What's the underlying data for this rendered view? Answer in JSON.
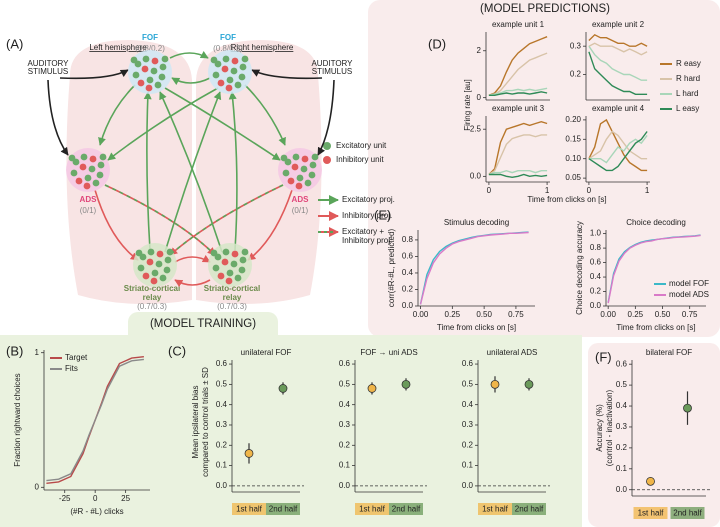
{
  "headers": {
    "predictions": "(MODEL PREDICTIONS)",
    "training": "(MODEL TRAINING)"
  },
  "panel_labels": {
    "a": "(A)",
    "b": "(B)",
    "c": "(C)",
    "d": "(D)",
    "e": "(E)",
    "f": "(F)"
  },
  "diagram": {
    "left_hemisphere": "Left hemisphere",
    "right_hemisphere": "Right hemisphere",
    "auditory": [
      "AUDITORY",
      "STIMULUS"
    ],
    "fof": "FOF",
    "fof_ratio": "(0.8/0.2)",
    "ads": "ADS",
    "ads_ratio": "(0/1)",
    "relay": [
      "Striato-cortical",
      "relay"
    ],
    "relay_ratio": "(0.7/0.3)",
    "legend": {
      "excitatory_unit": "Excitatory unit",
      "inhibitory_unit": "Inhibitory unit",
      "excitatory_proj": "Excitatory proj.",
      "inhibitory_proj": "Inhibitory proj.",
      "combined_proj": [
        "Excitatory +",
        "Inhibitory proj."
      ]
    }
  },
  "panel_d": {
    "ylabel": "Firing rate [au]",
    "xlabel": "Time from clicks on [s]"
  },
  "panel_c": {
    "ylabel": [
      "Mean ipsilateral bias",
      "compared to control trials ± SD"
    ]
  },
  "chart_data": [
    {
      "type": "line",
      "title": "example unit 1",
      "x": [
        0,
        0.1,
        0.2,
        0.3,
        0.4,
        0.5,
        0.6,
        0.7,
        0.8,
        0.9,
        1.0
      ],
      "xlim": [
        -0.05,
        1.05
      ],
      "ylim": [
        -0.1,
        2.8
      ],
      "yticks": [
        0,
        2
      ],
      "series": [
        {
          "name": "R easy",
          "color": "#b8762a",
          "values": [
            0.1,
            0.2,
            0.5,
            1.1,
            1.6,
            1.9,
            2.1,
            2.3,
            2.4,
            2.5,
            2.6
          ]
        },
        {
          "name": "R hard",
          "color": "#d8c3a8",
          "values": [
            0.1,
            0.15,
            0.3,
            0.6,
            0.9,
            1.2,
            1.4,
            1.6,
            1.7,
            1.8,
            1.9
          ]
        },
        {
          "name": "L hard",
          "color": "#a9d6b9",
          "values": [
            0.1,
            0.15,
            0.2,
            0.3,
            0.3,
            0.35,
            0.3,
            0.35,
            0.3,
            0.35,
            0.4
          ]
        },
        {
          "name": "L easy",
          "color": "#2e8a57",
          "values": [
            0.1,
            0.1,
            0.15,
            0.2,
            0.15,
            0.2,
            0.2,
            0.15,
            0.2,
            0.25,
            0.2
          ]
        }
      ]
    },
    {
      "type": "line",
      "title": "example unit 2",
      "x": [
        0,
        0.1,
        0.2,
        0.3,
        0.4,
        0.5,
        0.6,
        0.7,
        0.8,
        0.9,
        1.0
      ],
      "xlim": [
        -0.05,
        1.05
      ],
      "ylim": [
        0.11,
        0.35
      ],
      "yticks": [
        0.2,
        0.3
      ],
      "series": [
        {
          "name": "R easy",
          "color": "#b8762a",
          "values": [
            0.32,
            0.34,
            0.33,
            0.33,
            0.32,
            0.31,
            0.31,
            0.3,
            0.3,
            0.31,
            0.3
          ]
        },
        {
          "name": "R hard",
          "color": "#d8c3a8",
          "values": [
            0.3,
            0.31,
            0.3,
            0.3,
            0.3,
            0.29,
            0.28,
            0.29,
            0.28,
            0.27,
            0.28
          ]
        },
        {
          "name": "L hard",
          "color": "#a9d6b9",
          "values": [
            0.3,
            0.27,
            0.25,
            0.24,
            0.22,
            0.21,
            0.2,
            0.2,
            0.19,
            0.18,
            0.18
          ]
        },
        {
          "name": "L easy",
          "color": "#2e8a57",
          "values": [
            0.28,
            0.22,
            0.2,
            0.18,
            0.16,
            0.15,
            0.14,
            0.14,
            0.13,
            0.13,
            0.13
          ]
        }
      ]
    },
    {
      "type": "line",
      "title": "example unit 3",
      "x": [
        0,
        0.1,
        0.2,
        0.3,
        0.4,
        0.5,
        0.6,
        0.7,
        0.8,
        0.9,
        1.0
      ],
      "xlim": [
        -0.05,
        1.05
      ],
      "xticks": [
        0,
        1
      ],
      "ylim": [
        -0.3,
        3.2
      ],
      "yticks": [
        {
          "value": 0,
          "label": "0.0"
        },
        2.5
      ],
      "series": [
        {
          "name": "R easy",
          "color": "#b8762a",
          "values": [
            0.1,
            0.4,
            1.8,
            2.5,
            2.6,
            2.7,
            2.8,
            2.7,
            2.8,
            2.9,
            2.8
          ]
        },
        {
          "name": "R hard",
          "color": "#d8c3a8",
          "values": [
            0.1,
            0.3,
            1.0,
            1.7,
            2.0,
            2.1,
            2.2,
            2.2,
            2.1,
            2.2,
            2.2
          ]
        },
        {
          "name": "L hard",
          "color": "#a9d6b9",
          "values": [
            0.1,
            0.2,
            0.2,
            0.3,
            0.2,
            0.3,
            0.3,
            0.3,
            0.2,
            0.3,
            0.3
          ]
        },
        {
          "name": "L easy",
          "color": "#2e8a57",
          "values": [
            0.1,
            0.1,
            0.1,
            0.0,
            -0.05,
            0.0,
            0.1,
            0.0,
            0.05,
            0.0,
            0.05
          ]
        }
      ]
    },
    {
      "type": "line",
      "title": "example unit 4",
      "x": [
        0,
        0.1,
        0.2,
        0.3,
        0.4,
        0.5,
        0.6,
        0.7,
        0.8,
        0.9,
        1.0
      ],
      "xlim": [
        -0.05,
        1.05
      ],
      "xticks": [
        0,
        1
      ],
      "ylim": [
        0.04,
        0.21
      ],
      "yticks": [
        0.05,
        {
          "value": 0.1,
          "label": "0.10"
        },
        0.15,
        {
          "value": 0.2,
          "label": "0.20"
        }
      ],
      "series": [
        {
          "name": "R easy",
          "color": "#b8762a",
          "values": [
            0.1,
            0.13,
            0.19,
            0.2,
            0.17,
            0.14,
            0.11,
            0.09,
            0.08,
            0.07,
            0.07
          ]
        },
        {
          "name": "R hard",
          "color": "#d8c3a8",
          "values": [
            0.1,
            0.11,
            0.12,
            0.15,
            0.17,
            0.16,
            0.14,
            0.12,
            0.11,
            0.1,
            0.1
          ]
        },
        {
          "name": "L hard",
          "color": "#a9d6b9",
          "values": [
            0.1,
            0.1,
            0.1,
            0.09,
            0.11,
            0.13,
            0.12,
            0.14,
            0.15,
            0.14,
            0.16
          ]
        },
        {
          "name": "L easy",
          "color": "#2e8a57",
          "values": [
            0.1,
            0.09,
            0.08,
            0.07,
            0.07,
            0.08,
            0.1,
            0.12,
            0.14,
            0.15,
            0.17
          ]
        }
      ]
    },
    {
      "type": "line",
      "title": "Stimulus decoding",
      "ylabel": "corr(#R-#L, predicted)",
      "xlabel": "Time from clicks on [s]",
      "x": [
        0,
        0.05,
        0.1,
        0.15,
        0.2,
        0.25,
        0.3,
        0.35,
        0.4,
        0.45,
        0.5,
        0.55,
        0.6,
        0.65,
        0.7,
        0.75,
        0.8,
        0.85
      ],
      "xlim": [
        -0.02,
        0.9
      ],
      "xticks": [
        {
          "value": 0,
          "label": "0.00"
        },
        0.25,
        {
          "value": 0.5,
          "label": "0.50"
        },
        0.75
      ],
      "ylim": [
        0,
        0.92
      ],
      "yticks": [
        {
          "value": 0,
          "label": "0.0"
        },
        0.2,
        0.4,
        0.6,
        0.8
      ],
      "series": [
        {
          "name": "model FOF",
          "color": "#3cb8c8",
          "values": [
            0.02,
            0.38,
            0.56,
            0.66,
            0.72,
            0.76,
            0.79,
            0.81,
            0.83,
            0.845,
            0.855,
            0.865,
            0.87,
            0.875,
            0.88,
            0.885,
            0.89,
            0.895
          ]
        },
        {
          "name": "model ADS",
          "color": "#d97ac8",
          "values": [
            0.02,
            0.33,
            0.52,
            0.63,
            0.7,
            0.75,
            0.78,
            0.8,
            0.82,
            0.84,
            0.85,
            0.86,
            0.865,
            0.87,
            0.88,
            0.88,
            0.885,
            0.89
          ]
        }
      ]
    },
    {
      "type": "line",
      "title": "Choice decoding",
      "ylabel": "Choice decoding accuracy",
      "xlabel": "Time from clicks on [s]",
      "x": [
        0,
        0.05,
        0.1,
        0.15,
        0.2,
        0.25,
        0.3,
        0.35,
        0.4,
        0.45,
        0.5,
        0.55,
        0.6,
        0.65,
        0.7,
        0.75,
        0.8,
        0.85
      ],
      "xlim": [
        -0.02,
        0.9
      ],
      "xticks": [
        {
          "value": 0,
          "label": "0.00"
        },
        0.25,
        {
          "value": 0.5,
          "label": "0.50"
        },
        0.75
      ],
      "ylim": [
        0,
        1.05
      ],
      "yticks": [
        {
          "value": 0,
          "label": "0.0"
        },
        0.2,
        0.4,
        0.6,
        0.8,
        {
          "value": 1,
          "label": "1.0"
        }
      ],
      "legend": "lower right",
      "series": [
        {
          "name": "model FOF",
          "color": "#3cb8c8",
          "values": [
            0.05,
            0.45,
            0.65,
            0.75,
            0.81,
            0.85,
            0.88,
            0.9,
            0.91,
            0.92,
            0.93,
            0.94,
            0.95,
            0.955,
            0.96,
            0.965,
            0.97,
            0.98
          ]
        },
        {
          "name": "model ADS",
          "color": "#d97ac8",
          "values": [
            0.04,
            0.42,
            0.62,
            0.73,
            0.8,
            0.84,
            0.87,
            0.89,
            0.9,
            0.92,
            0.93,
            0.935,
            0.945,
            0.95,
            0.955,
            0.96,
            0.965,
            0.975
          ]
        }
      ]
    },
    {
      "type": "line",
      "ylabel": "Fraction rightward choices",
      "xlabel": "(#R - #L) clicks",
      "legend": "upper left",
      "x": [
        -40,
        -30,
        -20,
        -10,
        -5,
        0,
        5,
        10,
        20,
        30,
        40
      ],
      "xlim": [
        -42,
        45
      ],
      "xticks": [
        -25,
        0,
        25
      ],
      "ylim": [
        -0.02,
        1.02
      ],
      "yticks": [
        0,
        1
      ],
      "series": [
        {
          "name": "Target",
          "color": "#b84a4a",
          "values": [
            0.03,
            0.04,
            0.08,
            0.25,
            0.38,
            0.5,
            0.62,
            0.75,
            0.92,
            0.96,
            0.97
          ]
        },
        {
          "name": "Fits",
          "color": "#8a8a8a",
          "values": [
            0.05,
            0.06,
            0.1,
            0.27,
            0.39,
            0.5,
            0.61,
            0.73,
            0.9,
            0.94,
            0.95
          ]
        }
      ]
    },
    {
      "type": "errorbar",
      "title": "unilateral FOF",
      "categories": [
        "1st half",
        "2nd half"
      ],
      "values": [
        0.16,
        0.48
      ],
      "errors": [
        0.05,
        0.03
      ],
      "colors": [
        "#f0b64a",
        "#6a9a5a"
      ],
      "ylim": [
        -0.03,
        0.62
      ],
      "yticks": [
        {
          "value": 0,
          "label": "0.0"
        },
        0.1,
        0.2,
        0.3,
        0.4,
        0.5,
        0.6
      ],
      "reference_line": 0
    },
    {
      "type": "errorbar",
      "title": "FOF → uni ADS",
      "categories": [
        "1st half",
        "2nd half"
      ],
      "values": [
        0.48,
        0.5
      ],
      "errors": [
        0.03,
        0.03
      ],
      "colors": [
        "#f0b64a",
        "#6a9a5a"
      ],
      "ylim": [
        -0.03,
        0.62
      ],
      "yticks": [
        {
          "value": 0,
          "label": "0.0"
        },
        0.1,
        0.2,
        0.3,
        0.4,
        0.5,
        0.6
      ],
      "reference_line": 0
    },
    {
      "type": "errorbar",
      "title": "unilateral ADS",
      "categories": [
        "1st half",
        "2nd half"
      ],
      "values": [
        0.5,
        0.5
      ],
      "errors": [
        0.04,
        0.03
      ],
      "colors": [
        "#f0b64a",
        "#6a9a5a"
      ],
      "ylim": [
        -0.03,
        0.62
      ],
      "yticks": [
        {
          "value": 0,
          "label": "0.0"
        },
        0.1,
        0.2,
        0.3,
        0.4,
        0.5,
        0.6
      ],
      "reference_line": 0
    },
    {
      "type": "errorbar",
      "title": "bilateral FOF",
      "ylabel": [
        "Accuracy (%)",
        "(control - inactivation)"
      ],
      "categories": [
        "1st half",
        "2nd half"
      ],
      "values": [
        0.04,
        0.39
      ],
      "errors": [
        0.02,
        0.08
      ],
      "colors": [
        "#f0b64a",
        "#6a9a5a"
      ],
      "ylim": [
        -0.03,
        0.62
      ],
      "yticks": [
        {
          "value": 0,
          "label": "0.0"
        },
        0.1,
        0.2,
        0.3,
        0.4,
        0.5,
        0.6
      ],
      "reference_line": 0
    }
  ]
}
